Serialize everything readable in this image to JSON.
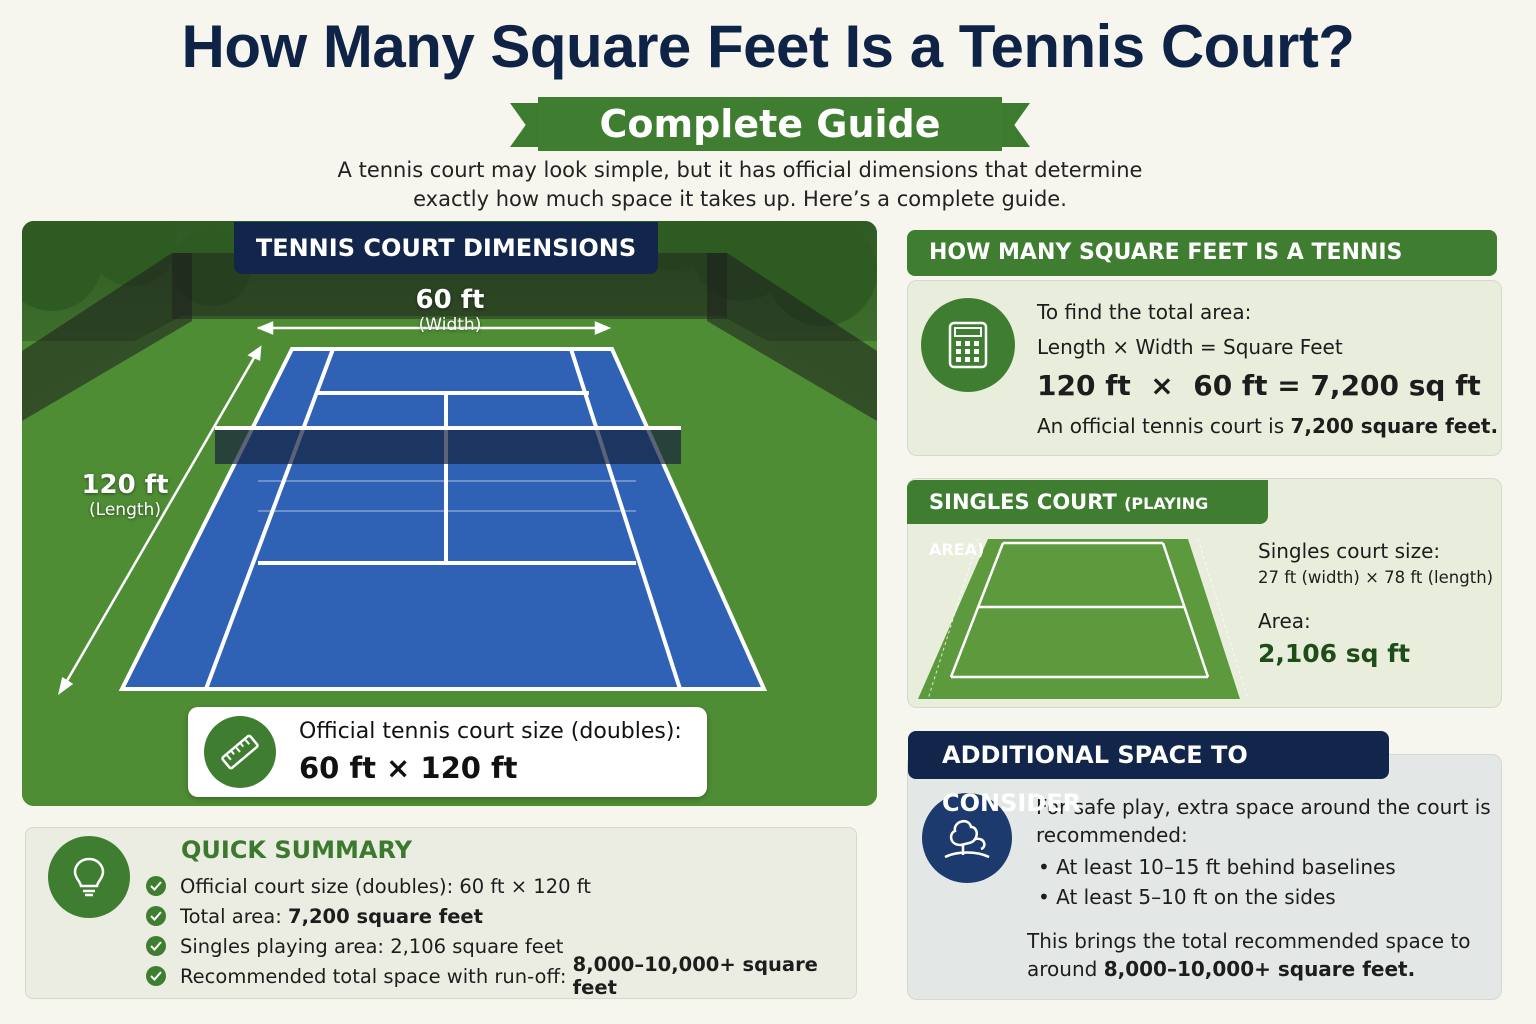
{
  "title": "How Many Square Feet Is a Tennis Court?",
  "subtitle": "Complete Guide",
  "intro": {
    "line1": "A tennis court may look simple, but it has official dimensions that determine",
    "line2": "exactly how much space it takes up. Here’s a complete guide."
  },
  "court": {
    "label": "TENNIS COURT DIMENSIONS",
    "width_value": "60 ft",
    "width_caption": "(Width)",
    "length_value": "120 ft",
    "length_caption": "(Length)",
    "size_label": "Official tennis court size (doubles):",
    "size_value": "60 ft × 120 ft"
  },
  "summary": {
    "heading": "QUICK SUMMARY",
    "items": [
      {
        "text": "Official court size (doubles): 60 ft × 120 ft",
        "bold": ""
      },
      {
        "text": "Total area: ",
        "bold": "7,200 square feet"
      },
      {
        "text": "Singles playing area: 2,106 square feet",
        "bold": ""
      },
      {
        "text": "Recommended total space with run-off: ",
        "bold": "8,000–10,000+ square feet"
      }
    ]
  },
  "area": {
    "heading": "HOW MANY SQUARE FEET IS A TENNIS COURT?",
    "line1": "To find the total area:",
    "formula": "Length × Width = Square Feet",
    "calc": "120 ft  ×  60 ft = 7,200 sq ft",
    "result_prefix": "An official tennis court is ",
    "result_bold": "7,200 square feet."
  },
  "singles": {
    "heading": "SINGLES COURT",
    "heading_sub": "(PLAYING AREA)",
    "size_label": "Singles court size:",
    "size_value": "27 ft (width) × 78 ft (length)",
    "area_label": "Area:",
    "area_value": "2,106 sq ft"
  },
  "extra": {
    "heading": "ADDITIONAL SPACE TO CONSIDER",
    "line1": "For safe play, extra space around the court is",
    "line2": "recommended:",
    "bullets": [
      "At least 10–15 ft behind baselines",
      "At least 5–10 ft on the sides"
    ],
    "closing1": "This brings the total recommended space to",
    "closing2_prefix": "around ",
    "closing2_bold": "8,000–10,000+ square feet."
  },
  "colors": {
    "navy": "#12254b",
    "green": "#3f7e31",
    "court_blue": "#2f62b5",
    "turf_green": "#4d8a34"
  },
  "icons": [
    "ruler-icon",
    "lightbulb-icon",
    "check-icon",
    "calculator-icon",
    "trees-icon"
  ]
}
